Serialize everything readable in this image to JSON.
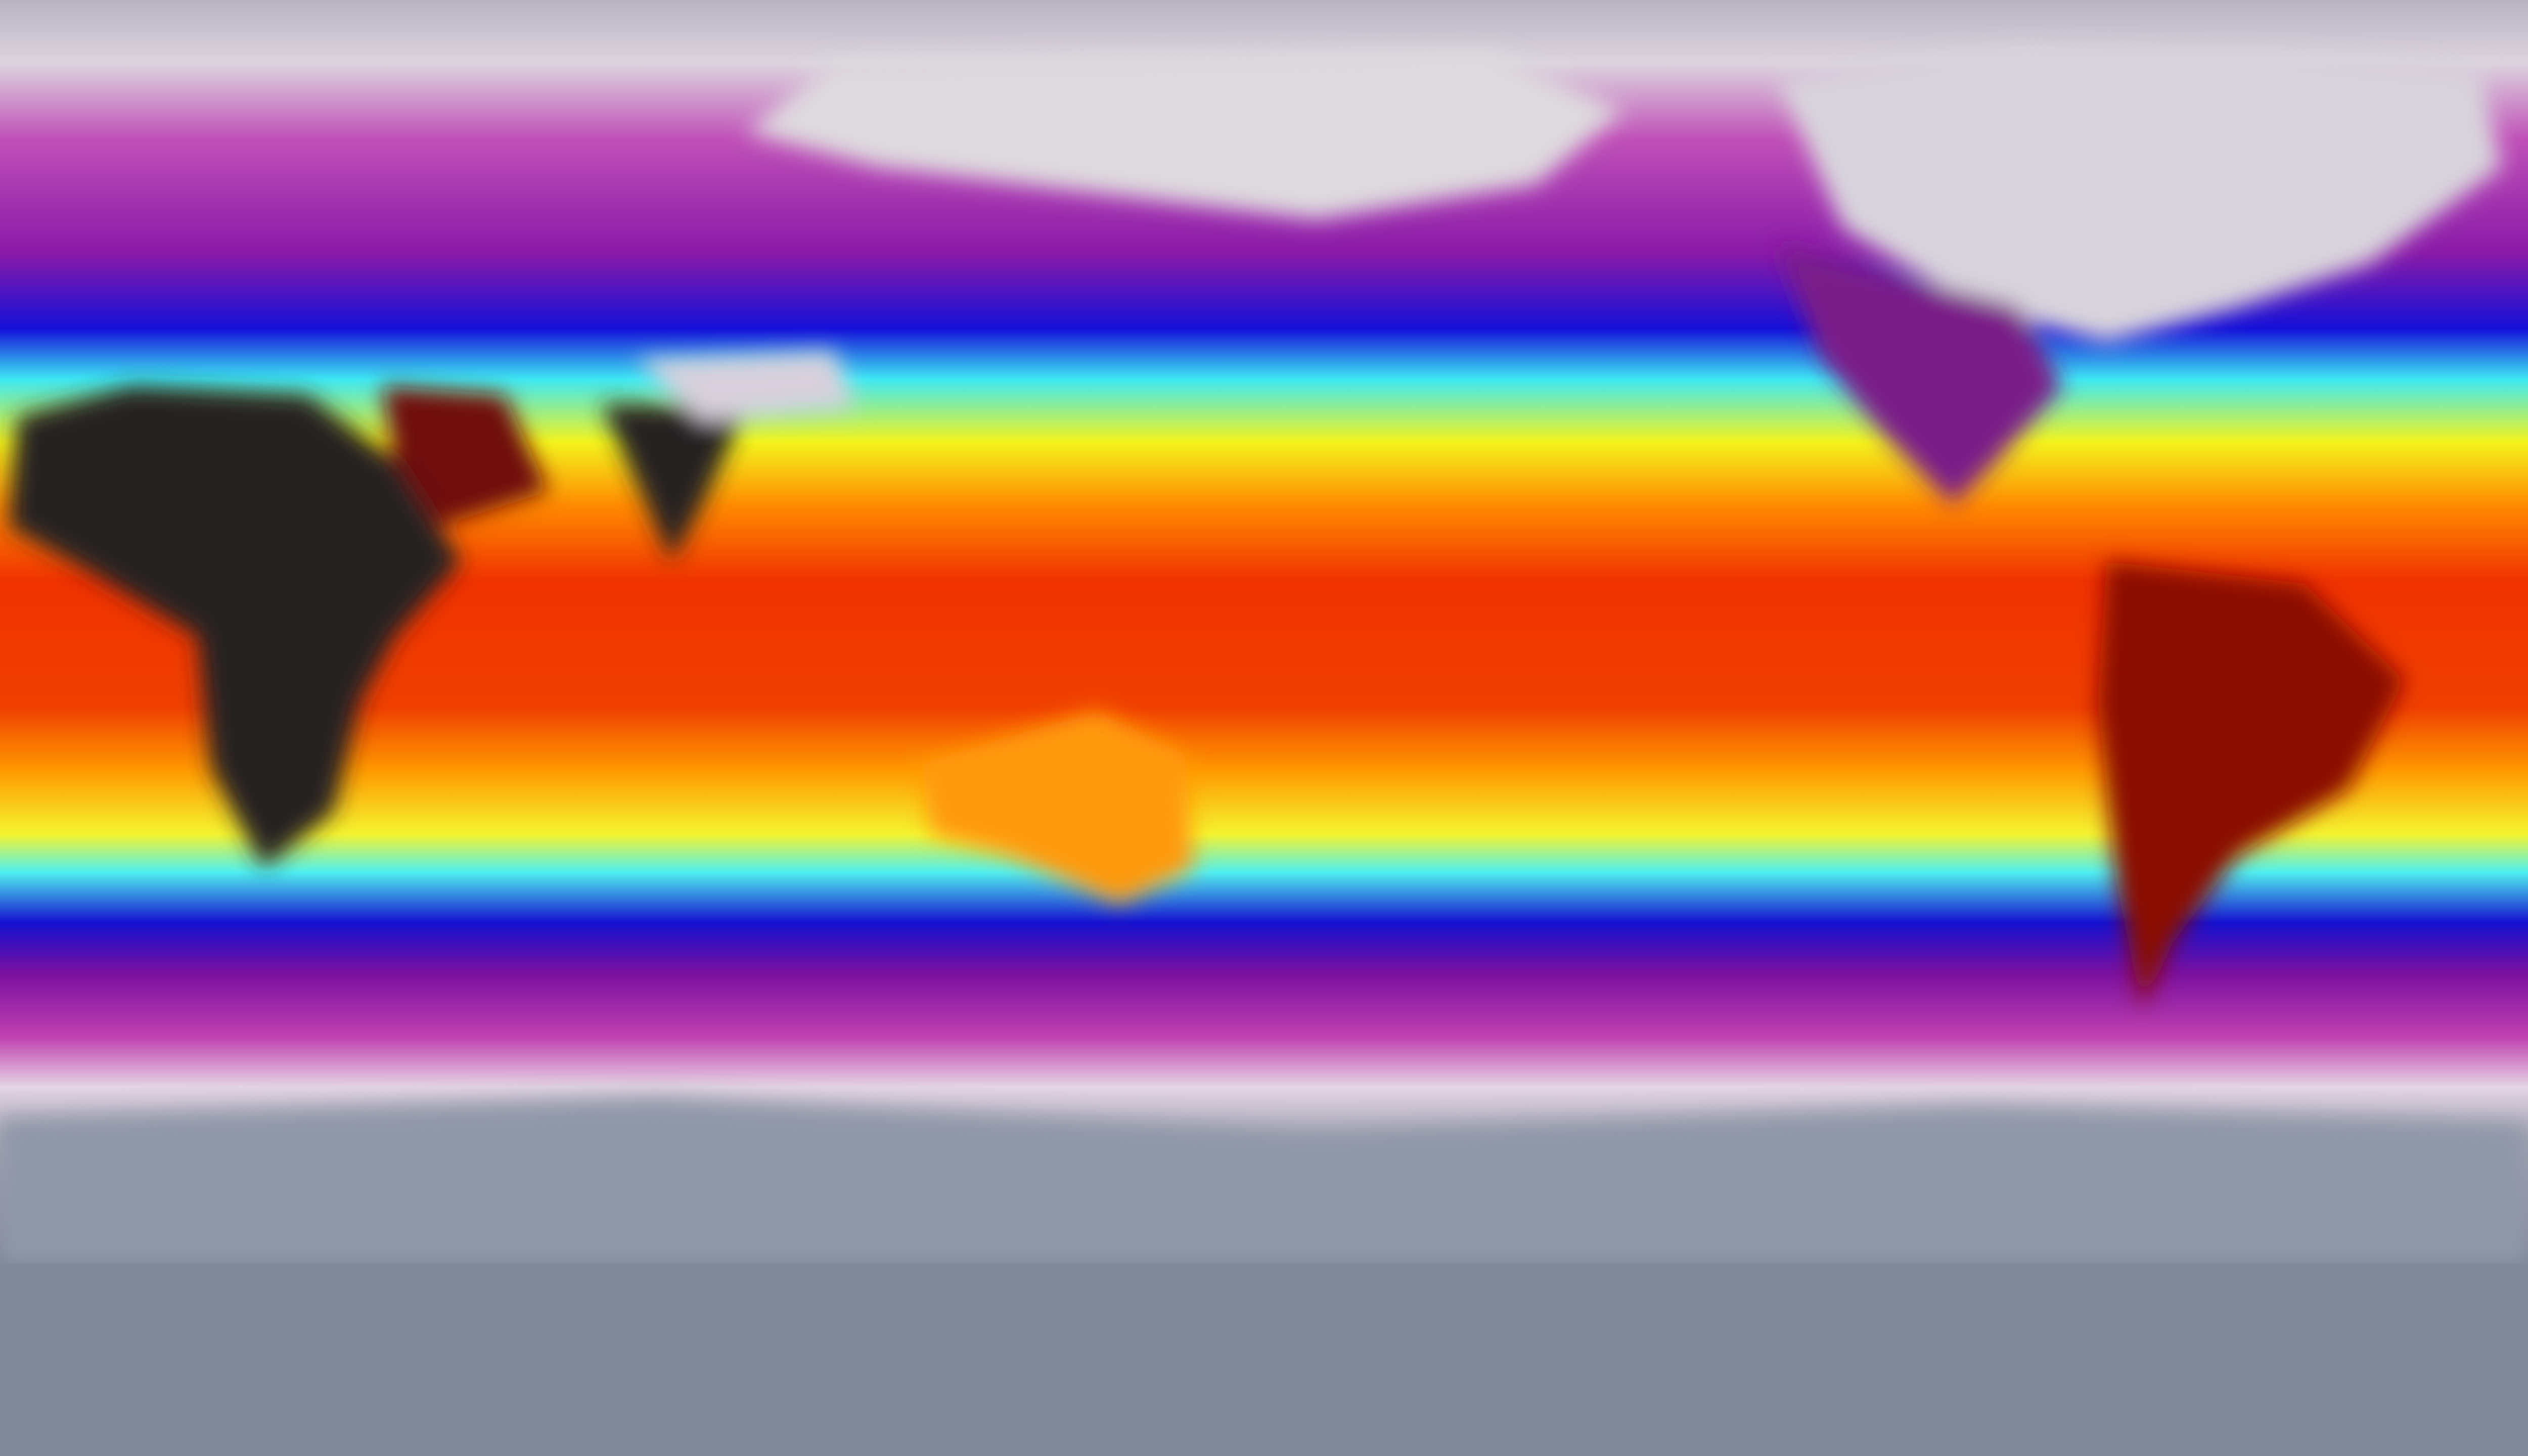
{
  "map": {
    "projection": "equirectangular",
    "colormap": [
      "#8a8c9c",
      "#d9d2de",
      "#b02ca8",
      "#7a1aa6",
      "#1410d8",
      "#3ee8f4",
      "#f4f41c",
      "#ff8a00",
      "#f03200",
      "#1e1a1a"
    ],
    "land_colors": {
      "hot_desert": "#262222",
      "hot_tropics": "#8a0e00",
      "polar_ice": "#d8d4dc"
    }
  }
}
